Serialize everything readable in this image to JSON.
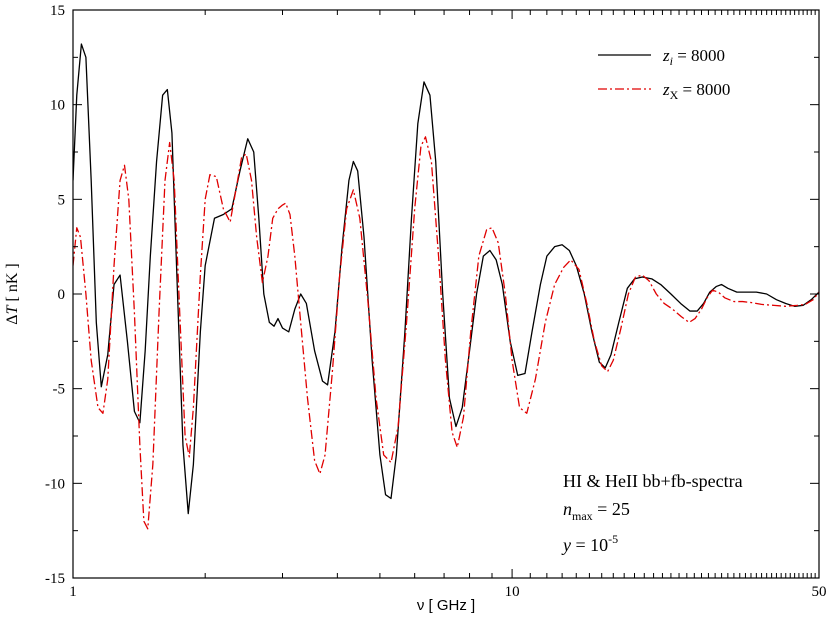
{
  "chart_data": {
    "type": "line",
    "xscale": "log",
    "xlim": [
      1,
      50
    ],
    "ylim": [
      -15,
      15
    ],
    "xlabel": "ν [ GHz ]",
    "ylabel": {
      "prefix": "Δ",
      "var": "T",
      "suffix": " [ nK ]"
    },
    "x_tick_labels": [
      {
        "value": 1,
        "label": "1"
      },
      {
        "value": 10,
        "label": "10"
      },
      {
        "value": 50,
        "label": "50"
      }
    ],
    "y_tick_labels": [
      {
        "value": 15,
        "label": "15"
      },
      {
        "value": 10,
        "label": "10"
      },
      {
        "value": 5,
        "label": "5"
      },
      {
        "value": 0,
        "label": "0"
      },
      {
        "value": -5,
        "label": "-5"
      },
      {
        "value": -10,
        "label": "-10"
      },
      {
        "value": -15,
        "label": "-15"
      }
    ],
    "legend": {
      "placement": "top-right",
      "entries": [
        {
          "var": "z",
          "sub": "i",
          "text": " = 8000",
          "color": "#000000",
          "style": "solid"
        },
        {
          "var": "z",
          "sub": "X",
          "text": " = 8000",
          "color": "#e00000",
          "style": "dash-dot"
        }
      ]
    },
    "annotation": {
      "line1": "HI & HeII bb+fb-spectra",
      "line2": {
        "var": "n",
        "sub": "max",
        "text": " = 25"
      },
      "line3": {
        "var": "y",
        "text": " = 10",
        "sup": "-5"
      }
    },
    "series": [
      {
        "name": "zi = 8000",
        "color": "#000000",
        "dash": "",
        "points": [
          [
            1.0,
            6.0
          ],
          [
            1.02,
            10.5
          ],
          [
            1.045,
            13.2
          ],
          [
            1.07,
            12.5
          ],
          [
            1.1,
            6.0
          ],
          [
            1.13,
            -1.5
          ],
          [
            1.16,
            -4.9
          ],
          [
            1.2,
            -3.2
          ],
          [
            1.24,
            0.5
          ],
          [
            1.28,
            1.0
          ],
          [
            1.33,
            -2.5
          ],
          [
            1.38,
            -6.2
          ],
          [
            1.42,
            -6.8
          ],
          [
            1.46,
            -3.0
          ],
          [
            1.5,
            2.0
          ],
          [
            1.55,
            7.0
          ],
          [
            1.6,
            10.5
          ],
          [
            1.64,
            10.8
          ],
          [
            1.68,
            8.5
          ],
          [
            1.73,
            0.0
          ],
          [
            1.78,
            -8.0
          ],
          [
            1.83,
            -11.6
          ],
          [
            1.88,
            -9.0
          ],
          [
            1.95,
            -2.0
          ],
          [
            2.0,
            1.5
          ],
          [
            2.1,
            4.0
          ],
          [
            2.2,
            4.2
          ],
          [
            2.3,
            4.5
          ],
          [
            2.4,
            6.5
          ],
          [
            2.5,
            8.2
          ],
          [
            2.58,
            7.5
          ],
          [
            2.65,
            4.0
          ],
          [
            2.72,
            0.0
          ],
          [
            2.8,
            -1.5
          ],
          [
            2.87,
            -1.7
          ],
          [
            2.93,
            -1.3
          ],
          [
            3.0,
            -1.8
          ],
          [
            3.1,
            -2.0
          ],
          [
            3.2,
            -0.8
          ],
          [
            3.3,
            0.0
          ],
          [
            3.4,
            -0.5
          ],
          [
            3.55,
            -3.0
          ],
          [
            3.7,
            -4.6
          ],
          [
            3.8,
            -4.8
          ],
          [
            3.95,
            -2.0
          ],
          [
            4.1,
            2.5
          ],
          [
            4.25,
            6.0
          ],
          [
            4.35,
            7.0
          ],
          [
            4.45,
            6.5
          ],
          [
            4.6,
            3.0
          ],
          [
            4.8,
            -3.5
          ],
          [
            5.0,
            -8.5
          ],
          [
            5.15,
            -10.6
          ],
          [
            5.3,
            -10.8
          ],
          [
            5.45,
            -8.5
          ],
          [
            5.7,
            -2.0
          ],
          [
            5.9,
            4.0
          ],
          [
            6.1,
            9.0
          ],
          [
            6.3,
            11.2
          ],
          [
            6.5,
            10.5
          ],
          [
            6.7,
            7.0
          ],
          [
            6.95,
            0.0
          ],
          [
            7.2,
            -5.5
          ],
          [
            7.45,
            -7.0
          ],
          [
            7.7,
            -6.0
          ],
          [
            8.0,
            -3.0
          ],
          [
            8.3,
            0.0
          ],
          [
            8.6,
            2.0
          ],
          [
            8.9,
            2.3
          ],
          [
            9.2,
            1.8
          ],
          [
            9.5,
            0.5
          ],
          [
            9.9,
            -2.5
          ],
          [
            10.3,
            -4.3
          ],
          [
            10.7,
            -4.2
          ],
          [
            11.1,
            -2.0
          ],
          [
            11.6,
            0.5
          ],
          [
            12.0,
            2.0
          ],
          [
            12.5,
            2.5
          ],
          [
            13.0,
            2.6
          ],
          [
            13.5,
            2.3
          ],
          [
            14.0,
            1.5
          ],
          [
            14.6,
            0.0
          ],
          [
            15.2,
            -2.0
          ],
          [
            15.8,
            -3.6
          ],
          [
            16.3,
            -3.9
          ],
          [
            16.8,
            -3.2
          ],
          [
            17.5,
            -1.5
          ],
          [
            18.3,
            0.3
          ],
          [
            19.0,
            0.8
          ],
          [
            19.8,
            0.9
          ],
          [
            20.8,
            0.8
          ],
          [
            21.8,
            0.5
          ],
          [
            23.0,
            0.0
          ],
          [
            24.2,
            -0.5
          ],
          [
            25.4,
            -0.9
          ],
          [
            26.4,
            -0.9
          ],
          [
            27.3,
            -0.5
          ],
          [
            28.2,
            0.1
          ],
          [
            29.2,
            0.4
          ],
          [
            30.0,
            0.5
          ],
          [
            31.0,
            0.3
          ],
          [
            32.5,
            0.1
          ],
          [
            34.0,
            0.1
          ],
          [
            36.0,
            0.1
          ],
          [
            38.0,
            0.0
          ],
          [
            40.0,
            -0.3
          ],
          [
            42.0,
            -0.5
          ],
          [
            44.0,
            -0.65
          ],
          [
            46.0,
            -0.6
          ],
          [
            48.0,
            -0.3
          ],
          [
            50.0,
            0.1
          ]
        ]
      },
      {
        "name": "zX = 8000",
        "color": "#e00000",
        "dash": "9,3,2,3",
        "points": [
          [
            1.0,
            1.5
          ],
          [
            1.02,
            3.5
          ],
          [
            1.04,
            3.0
          ],
          [
            1.07,
            0.0
          ],
          [
            1.1,
            -3.5
          ],
          [
            1.14,
            -6.0
          ],
          [
            1.17,
            -6.3
          ],
          [
            1.2,
            -4.5
          ],
          [
            1.24,
            1.5
          ],
          [
            1.28,
            6.0
          ],
          [
            1.31,
            6.8
          ],
          [
            1.34,
            5.0
          ],
          [
            1.38,
            -1.0
          ],
          [
            1.42,
            -8.0
          ],
          [
            1.45,
            -12.0
          ],
          [
            1.48,
            -12.4
          ],
          [
            1.52,
            -9.0
          ],
          [
            1.57,
            -1.0
          ],
          [
            1.62,
            6.0
          ],
          [
            1.66,
            8.0
          ],
          [
            1.7,
            6.0
          ],
          [
            1.75,
            -1.0
          ],
          [
            1.8,
            -7.5
          ],
          [
            1.84,
            -8.6
          ],
          [
            1.88,
            -6.0
          ],
          [
            1.95,
            1.0
          ],
          [
            2.0,
            5.0
          ],
          [
            2.05,
            6.3
          ],
          [
            2.12,
            6.2
          ],
          [
            2.2,
            4.5
          ],
          [
            2.28,
            3.8
          ],
          [
            2.35,
            5.5
          ],
          [
            2.42,
            7.2
          ],
          [
            2.48,
            7.4
          ],
          [
            2.55,
            6.0
          ],
          [
            2.62,
            3.0
          ],
          [
            2.7,
            0.6
          ],
          [
            2.78,
            2.0
          ],
          [
            2.85,
            4.0
          ],
          [
            2.93,
            4.5
          ],
          [
            3.0,
            4.7
          ],
          [
            3.05,
            4.8
          ],
          [
            3.12,
            4.2
          ],
          [
            3.2,
            2.0
          ],
          [
            3.3,
            -1.5
          ],
          [
            3.42,
            -5.5
          ],
          [
            3.55,
            -8.8
          ],
          [
            3.65,
            -9.5
          ],
          [
            3.75,
            -8.5
          ],
          [
            3.9,
            -4.0
          ],
          [
            4.05,
            1.0
          ],
          [
            4.2,
            4.5
          ],
          [
            4.35,
            5.5
          ],
          [
            4.5,
            4.0
          ],
          [
            4.7,
            -0.5
          ],
          [
            4.9,
            -5.5
          ],
          [
            5.1,
            -8.5
          ],
          [
            5.3,
            -8.9
          ],
          [
            5.5,
            -7.0
          ],
          [
            5.75,
            -1.5
          ],
          [
            6.0,
            4.5
          ],
          [
            6.2,
            7.8
          ],
          [
            6.35,
            8.3
          ],
          [
            6.55,
            7.0
          ],
          [
            6.8,
            2.0
          ],
          [
            7.05,
            -3.5
          ],
          [
            7.3,
            -7.3
          ],
          [
            7.5,
            -8.1
          ],
          [
            7.75,
            -6.5
          ],
          [
            8.05,
            -2.0
          ],
          [
            8.4,
            2.0
          ],
          [
            8.75,
            3.4
          ],
          [
            9.0,
            3.5
          ],
          [
            9.3,
            2.7
          ],
          [
            9.65,
            0.0
          ],
          [
            10.0,
            -3.5
          ],
          [
            10.4,
            -6.0
          ],
          [
            10.8,
            -6.3
          ],
          [
            11.3,
            -4.5
          ],
          [
            11.9,
            -1.5
          ],
          [
            12.5,
            0.5
          ],
          [
            13.1,
            1.4
          ],
          [
            13.6,
            1.8
          ],
          [
            14.2,
            1.3
          ],
          [
            14.8,
            -0.5
          ],
          [
            15.4,
            -2.5
          ],
          [
            16.0,
            -3.8
          ],
          [
            16.5,
            -4.1
          ],
          [
            17.0,
            -3.5
          ],
          [
            17.7,
            -1.8
          ],
          [
            18.4,
            0.0
          ],
          [
            19.1,
            0.9
          ],
          [
            19.8,
            1.0
          ],
          [
            20.5,
            0.7
          ],
          [
            21.3,
            0.0
          ],
          [
            22.2,
            -0.5
          ],
          [
            23.2,
            -0.8
          ],
          [
            24.3,
            -1.2
          ],
          [
            25.3,
            -1.5
          ],
          [
            26.1,
            -1.3
          ],
          [
            27.0,
            -0.8
          ],
          [
            27.8,
            -0.2
          ],
          [
            28.6,
            0.2
          ],
          [
            29.5,
            0.1
          ],
          [
            30.5,
            -0.2
          ],
          [
            32.0,
            -0.4
          ],
          [
            33.5,
            -0.4
          ],
          [
            35.0,
            -0.45
          ],
          [
            37.0,
            -0.55
          ],
          [
            39.5,
            -0.6
          ],
          [
            42.0,
            -0.65
          ],
          [
            44.5,
            -0.6
          ],
          [
            46.5,
            -0.55
          ],
          [
            48.5,
            -0.3
          ],
          [
            50.0,
            0.1
          ]
        ]
      }
    ]
  }
}
